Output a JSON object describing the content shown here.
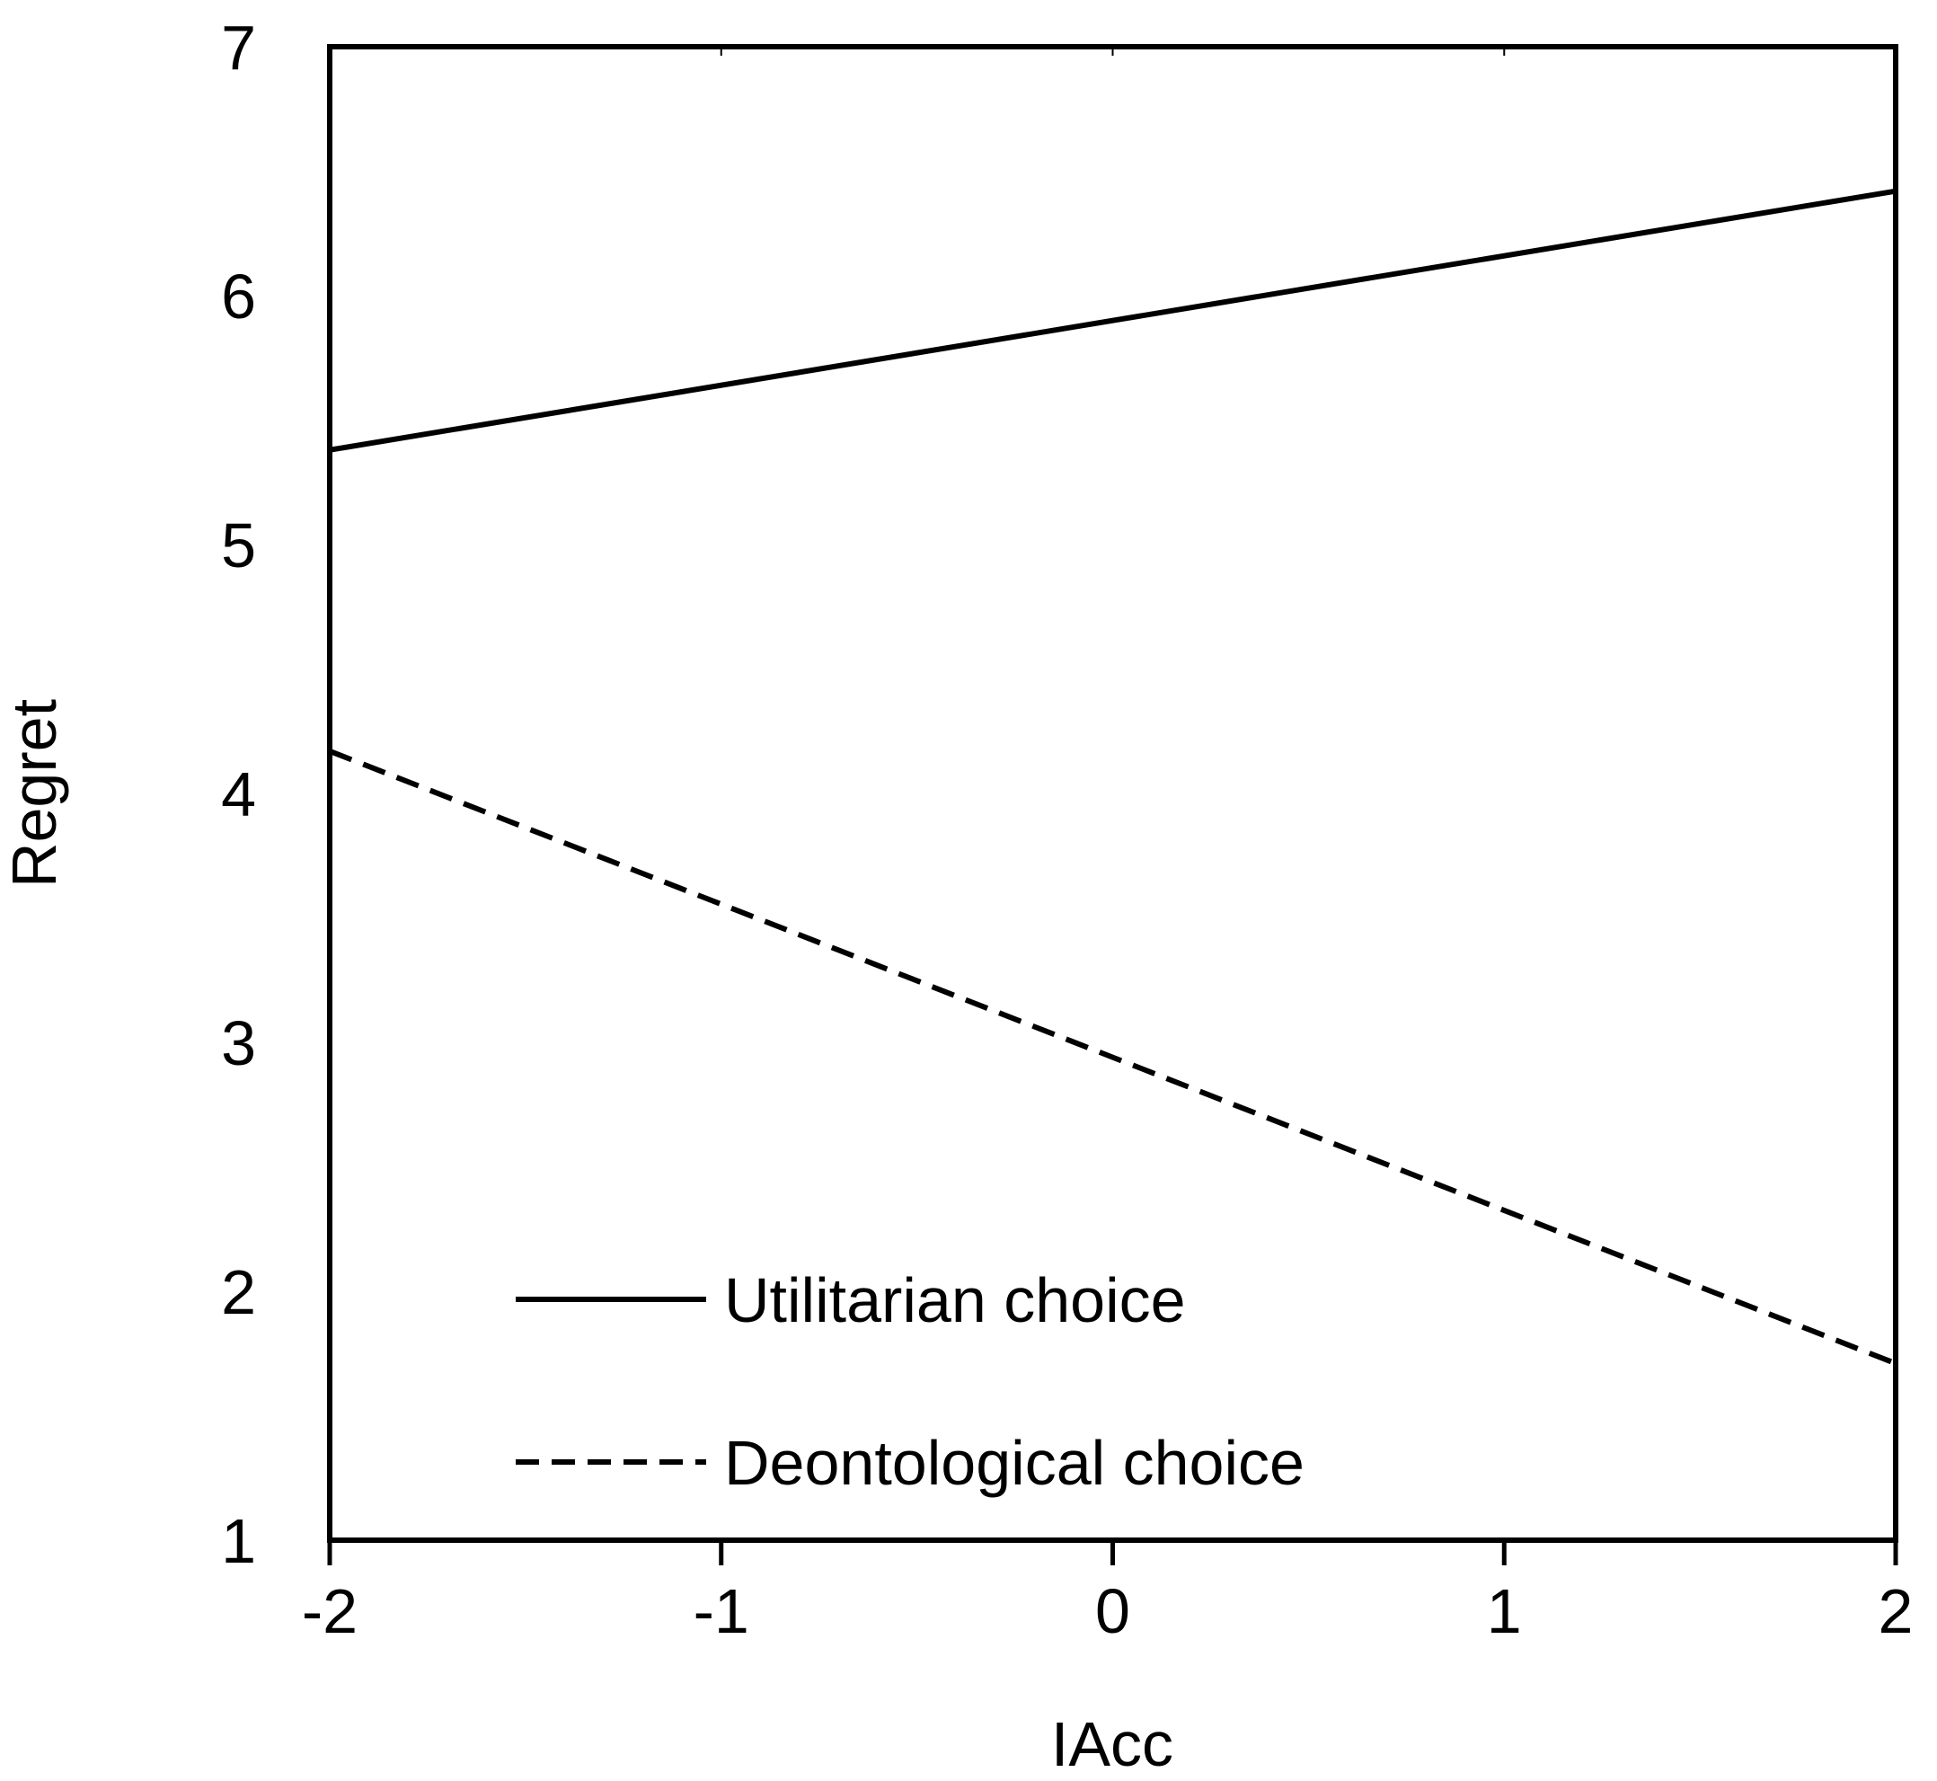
{
  "chart_data": {
    "type": "line",
    "title": "",
    "xlabel": "IAcc",
    "ylabel": "Regret",
    "xlim": [
      -2,
      2
    ],
    "ylim": [
      1,
      7
    ],
    "xticks": [
      -2,
      -1,
      0,
      1,
      2
    ],
    "yticks": [
      1,
      2,
      3,
      4,
      5,
      6,
      7
    ],
    "xtick_labels": [
      "-2",
      "-1",
      "0",
      "1",
      "2"
    ],
    "ytick_labels": [
      "1",
      "2",
      "3",
      "4",
      "5",
      "6",
      "7"
    ],
    "grid": false,
    "legend_position": "bottom-center inside plot",
    "series": [
      {
        "name": "Utilitarian choice",
        "style": "solid",
        "color": "#000000",
        "x": [
          -2,
          2
        ],
        "y": [
          5.38,
          6.42
        ]
      },
      {
        "name": "Deontological choice",
        "style": "dashed",
        "color": "#000000",
        "x": [
          -2,
          2
        ],
        "y": [
          4.17,
          1.71
        ]
      }
    ]
  }
}
